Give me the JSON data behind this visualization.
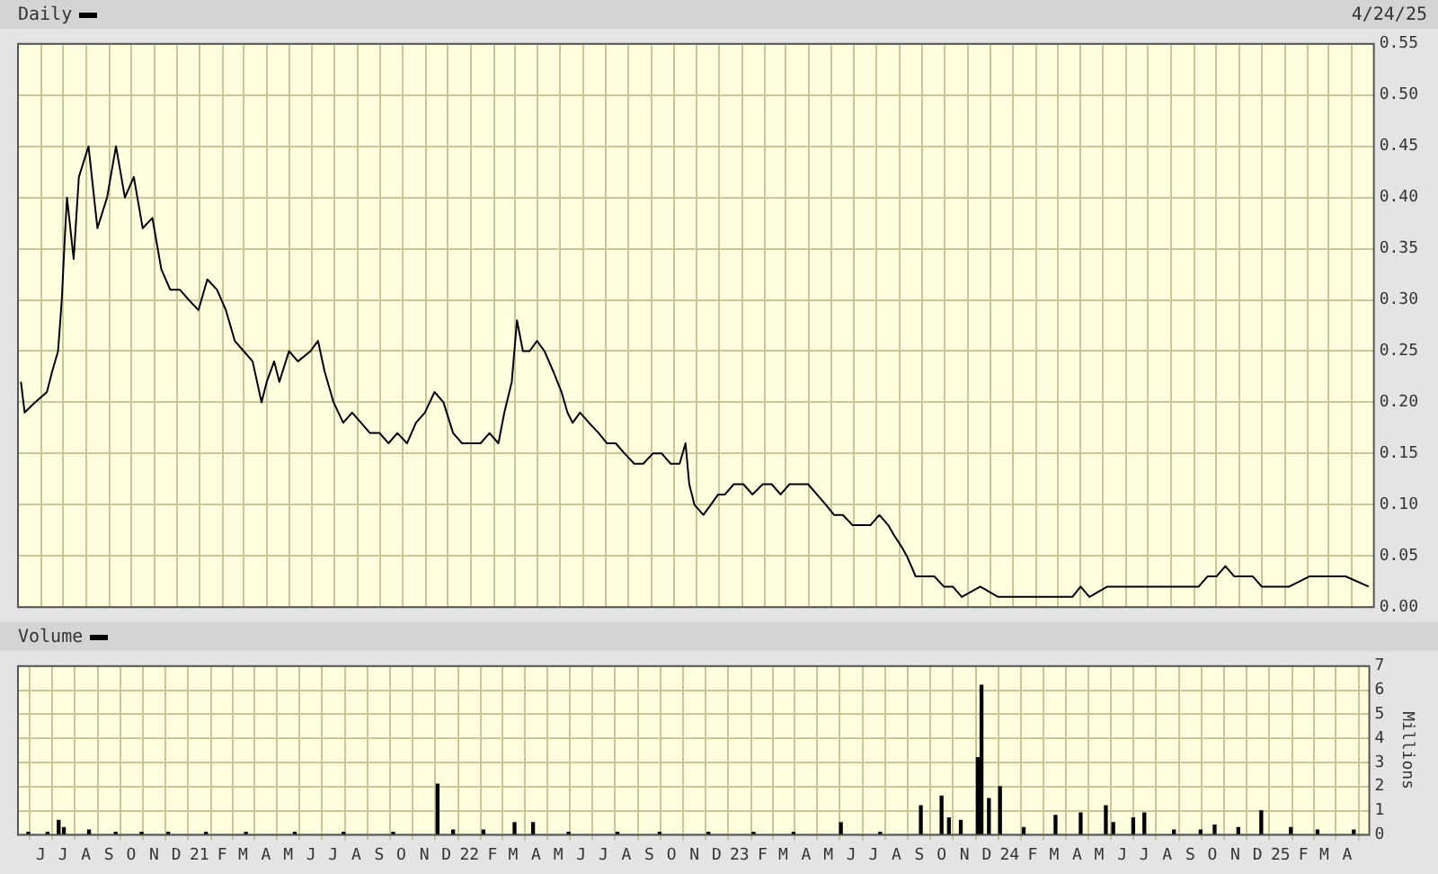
{
  "chart_data": [
    {
      "type": "line",
      "legend": "top left",
      "marker": "none",
      "grid": true,
      "tick_labels": "y",
      "annotations": [
        "4/24/25"
      ],
      "xlim": [
        "2020-05-01",
        "2025-05-01"
      ],
      "xticks": [
        {
          "value": "2020-06",
          "label": null
        },
        {
          "value": "2020-07",
          "label": null
        },
        {
          "value": "2020-08",
          "label": null
        },
        {
          "value": "2020-09",
          "label": null
        },
        {
          "value": "2020-10",
          "label": null
        },
        {
          "value": "2020-11",
          "label": null
        },
        {
          "value": "2020-12",
          "label": null
        },
        {
          "value": "2021-01",
          "label": null
        },
        {
          "value": "2021-02",
          "label": null
        },
        {
          "value": "2021-03",
          "label": null
        },
        {
          "value": "2021-04",
          "label": null
        },
        {
          "value": "2021-05",
          "label": null
        },
        {
          "value": "2021-06",
          "label": null
        },
        {
          "value": "2021-07",
          "label": null
        },
        {
          "value": "2021-08",
          "label": null
        },
        {
          "value": "2021-09",
          "label": null
        },
        {
          "value": "2021-10",
          "label": null
        },
        {
          "value": "2021-11",
          "label": null
        },
        {
          "value": "2021-12",
          "label": null
        },
        {
          "value": "2022-01",
          "label": null
        },
        {
          "value": "2022-02",
          "label": null
        },
        {
          "value": "2022-03",
          "label": null
        },
        {
          "value": "2022-04",
          "label": null
        },
        {
          "value": "2022-05",
          "label": null
        },
        {
          "value": "2022-06",
          "label": null
        },
        {
          "value": "2022-07",
          "label": null
        },
        {
          "value": "2022-08",
          "label": null
        },
        {
          "value": "2022-09",
          "label": null
        },
        {
          "value": "2022-10",
          "label": null
        },
        {
          "value": "2022-11",
          "label": null
        },
        {
          "value": "2022-12",
          "label": null
        },
        {
          "value": "2023-01",
          "label": null
        },
        {
          "value": "2023-02",
          "label": null
        },
        {
          "value": "2023-03",
          "label": null
        },
        {
          "value": "2023-04",
          "label": null
        },
        {
          "value": "2023-05",
          "label": null
        },
        {
          "value": "2023-06",
          "label": null
        },
        {
          "value": "2023-07",
          "label": null
        },
        {
          "value": "2023-08",
          "label": null
        },
        {
          "value": "2023-09",
          "label": null
        },
        {
          "value": "2023-10",
          "label": null
        },
        {
          "value": "2023-11",
          "label": null
        },
        {
          "value": "2023-12",
          "label": null
        },
        {
          "value": "2024-01",
          "label": null
        },
        {
          "value": "2024-02",
          "label": null
        },
        {
          "value": "2024-03",
          "label": null
        },
        {
          "value": "2024-04",
          "label": null
        },
        {
          "value": "2024-05",
          "label": null
        },
        {
          "value": "2024-06",
          "label": null
        },
        {
          "value": "2024-07",
          "label": null
        },
        {
          "value": "2024-08",
          "label": null
        },
        {
          "value": "2024-09",
          "label": null
        },
        {
          "value": "2024-10",
          "label": null
        },
        {
          "value": "2024-11",
          "label": null
        },
        {
          "value": "2024-12",
          "label": null
        },
        {
          "value": "2025-01",
          "label": null
        },
        {
          "value": "2025-02",
          "label": null
        },
        {
          "value": "2025-03",
          "label": null
        },
        {
          "value": "2025-04",
          "label": null
        }
      ],
      "ylim": [
        0,
        0.55
      ],
      "yticks": [
        {
          "value": 0,
          "label": "0.00"
        },
        {
          "value": 0.05,
          "label": "0.05"
        },
        {
          "value": 0.1,
          "label": "0.10"
        },
        {
          "value": 0.15,
          "label": "0.15"
        },
        {
          "value": 0.2,
          "label": "0.20"
        },
        {
          "value": 0.25,
          "label": "0.25"
        },
        {
          "value": 0.3,
          "label": "0.30"
        },
        {
          "value": 0.35,
          "label": "0.35"
        },
        {
          "value": 0.4,
          "label": "0.40"
        },
        {
          "value": 0.45,
          "label": "0.45"
        },
        {
          "value": 0.5,
          "label": "0.50"
        },
        {
          "value": 0.55,
          "label": "0.55"
        }
      ],
      "series": [
        {
          "name": "Daily",
          "color": "#000000",
          "x": [
            "2020-05-05",
            "2020-05-10",
            "2020-05-24",
            "2020-06-09",
            "2020-06-16",
            "2020-06-24",
            "2020-06-29",
            "2020-07-03",
            "2020-07-06",
            "2020-07-15",
            "2020-07-22",
            "2020-08-04",
            "2020-08-16",
            "2020-08-29",
            "2020-09-10",
            "2020-09-22",
            "2020-10-04",
            "2020-10-16",
            "2020-10-29",
            "2020-11-10",
            "2020-11-22",
            "2020-12-05",
            "2020-12-17",
            "2020-12-30",
            "2021-01-11",
            "2021-01-24",
            "2021-02-05",
            "2021-02-17",
            "2021-03-01",
            "2021-03-13",
            "2021-03-25",
            "2021-04-01",
            "2021-04-11",
            "2021-04-18",
            "2021-05-01",
            "2021-05-13",
            "2021-05-30",
            "2021-06-09",
            "2021-06-18",
            "2021-06-30",
            "2021-07-13",
            "2021-07-25",
            "2021-08-06",
            "2021-08-18",
            "2021-08-31",
            "2021-09-12",
            "2021-09-24",
            "2021-10-07",
            "2021-10-19",
            "2021-10-31",
            "2021-11-13",
            "2021-11-25",
            "2021-12-08",
            "2021-12-20",
            "2022-01-02",
            "2022-01-14",
            "2022-01-26",
            "2022-02-07",
            "2022-02-15",
            "2022-02-25",
            "2022-03-04",
            "2022-03-12",
            "2022-03-21",
            "2022-03-31",
            "2022-04-10",
            "2022-04-22",
            "2022-05-03",
            "2022-05-11",
            "2022-05-18",
            "2022-05-28",
            "2022-06-09",
            "2022-06-22",
            "2022-07-03",
            "2022-07-15",
            "2022-07-27",
            "2022-08-09",
            "2022-08-21",
            "2022-09-03",
            "2022-09-15",
            "2022-09-27",
            "2022-10-09",
            "2022-10-17",
            "2022-10-22",
            "2022-10-29",
            "2022-11-10",
            "2022-11-20",
            "2022-11-30",
            "2022-12-09",
            "2022-12-21",
            "2023-01-03",
            "2023-01-15",
            "2023-01-29",
            "2023-02-10",
            "2023-02-22",
            "2023-03-06",
            "2023-03-18",
            "2023-03-31",
            "2023-04-12",
            "2023-04-24",
            "2023-05-05",
            "2023-05-17",
            "2023-05-30",
            "2023-06-11",
            "2023-06-23",
            "2023-07-05",
            "2023-07-17",
            "2023-07-25",
            "2023-08-03",
            "2023-08-11",
            "2023-08-23",
            "2023-09-05",
            "2023-09-17",
            "2023-09-30",
            "2023-10-12",
            "2023-10-24",
            "2023-11-18",
            "2023-12-12",
            "2024-01-06",
            "2024-01-30",
            "2024-02-24",
            "2024-03-21",
            "2024-04-01",
            "2024-04-13",
            "2024-05-07",
            "2024-06-01",
            "2024-06-25",
            "2024-07-19",
            "2024-08-13",
            "2024-09-07",
            "2024-09-19",
            "2024-10-01",
            "2024-10-13",
            "2024-10-25",
            "2024-11-07",
            "2024-11-19",
            "2024-12-01",
            "2024-12-13",
            "2025-01-07",
            "2025-02-03",
            "2025-02-27",
            "2025-03-11",
            "2025-03-24",
            "2025-04-24"
          ],
          "values": [
            0.22,
            0.19,
            0.2,
            0.21,
            0.23,
            0.25,
            0.3,
            0.36,
            0.4,
            0.34,
            0.42,
            0.45,
            0.37,
            0.4,
            0.45,
            0.4,
            0.42,
            0.37,
            0.38,
            0.33,
            0.31,
            0.31,
            0.3,
            0.29,
            0.32,
            0.31,
            0.29,
            0.26,
            0.25,
            0.24,
            0.2,
            0.22,
            0.24,
            0.22,
            0.25,
            0.24,
            0.25,
            0.26,
            0.23,
            0.2,
            0.18,
            0.19,
            0.18,
            0.17,
            0.17,
            0.16,
            0.17,
            0.16,
            0.18,
            0.19,
            0.21,
            0.2,
            0.17,
            0.16,
            0.16,
            0.16,
            0.17,
            0.16,
            0.19,
            0.22,
            0.28,
            0.25,
            0.25,
            0.26,
            0.25,
            0.23,
            0.21,
            0.19,
            0.18,
            0.19,
            0.18,
            0.17,
            0.16,
            0.16,
            0.15,
            0.14,
            0.14,
            0.15,
            0.15,
            0.14,
            0.14,
            0.16,
            0.12,
            0.1,
            0.09,
            0.1,
            0.11,
            0.11,
            0.12,
            0.12,
            0.11,
            0.12,
            0.12,
            0.11,
            0.12,
            0.12,
            0.12,
            0.11,
            0.1,
            0.09,
            0.09,
            0.08,
            0.08,
            0.08,
            0.09,
            0.08,
            0.07,
            0.06,
            0.05,
            0.03,
            0.03,
            0.03,
            0.02,
            0.02,
            0.01,
            0.02,
            0.01,
            0.01,
            0.01,
            0.01,
            0.01,
            0.02,
            0.01,
            0.02,
            0.02,
            0.02,
            0.02,
            0.02,
            0.02,
            0.03,
            0.03,
            0.04,
            0.03,
            0.03,
            0.03,
            0.02,
            0.02,
            0.02,
            0.03,
            0.03,
            0.03,
            0.03,
            0.02
          ]
        }
      ]
    },
    {
      "type": "bar",
      "legend": "top left",
      "grid": true,
      "ylabel": "Millions",
      "xlim": [
        "2020-05-01",
        "2025-05-01"
      ],
      "xticks": [
        {
          "value": "2020-06",
          "label": "J"
        },
        {
          "value": "2020-07",
          "label": "J"
        },
        {
          "value": "2020-08",
          "label": "A"
        },
        {
          "value": "2020-09",
          "label": "S"
        },
        {
          "value": "2020-10",
          "label": "O"
        },
        {
          "value": "2020-11",
          "label": "N"
        },
        {
          "value": "2020-12",
          "label": "D"
        },
        {
          "value": "2021-01",
          "label": "21"
        },
        {
          "value": "2021-02",
          "label": "F"
        },
        {
          "value": "2021-03",
          "label": "M"
        },
        {
          "value": "2021-04",
          "label": "A"
        },
        {
          "value": "2021-05",
          "label": "M"
        },
        {
          "value": "2021-06",
          "label": "J"
        },
        {
          "value": "2021-07",
          "label": "J"
        },
        {
          "value": "2021-08",
          "label": "A"
        },
        {
          "value": "2021-09",
          "label": "S"
        },
        {
          "value": "2021-10",
          "label": "O"
        },
        {
          "value": "2021-11",
          "label": "N"
        },
        {
          "value": "2021-12",
          "label": "D"
        },
        {
          "value": "2022-01",
          "label": "22"
        },
        {
          "value": "2022-02",
          "label": "F"
        },
        {
          "value": "2022-03",
          "label": "M"
        },
        {
          "value": "2022-04",
          "label": "A"
        },
        {
          "value": "2022-05",
          "label": "M"
        },
        {
          "value": "2022-06",
          "label": "J"
        },
        {
          "value": "2022-07",
          "label": "J"
        },
        {
          "value": "2022-08",
          "label": "A"
        },
        {
          "value": "2022-09",
          "label": "S"
        },
        {
          "value": "2022-10",
          "label": "O"
        },
        {
          "value": "2022-11",
          "label": "N"
        },
        {
          "value": "2022-12",
          "label": "D"
        },
        {
          "value": "2023-01",
          "label": "23"
        },
        {
          "value": "2023-02",
          "label": "F"
        },
        {
          "value": "2023-03",
          "label": "M"
        },
        {
          "value": "2023-04",
          "label": "A"
        },
        {
          "value": "2023-05",
          "label": "M"
        },
        {
          "value": "2023-06",
          "label": "J"
        },
        {
          "value": "2023-07",
          "label": "J"
        },
        {
          "value": "2023-08",
          "label": "A"
        },
        {
          "value": "2023-09",
          "label": "S"
        },
        {
          "value": "2023-10",
          "label": "O"
        },
        {
          "value": "2023-11",
          "label": "N"
        },
        {
          "value": "2023-12",
          "label": "D"
        },
        {
          "value": "2024-01",
          "label": "24"
        },
        {
          "value": "2024-02",
          "label": "F"
        },
        {
          "value": "2024-03",
          "label": "M"
        },
        {
          "value": "2024-04",
          "label": "A"
        },
        {
          "value": "2024-05",
          "label": "M"
        },
        {
          "value": "2024-06",
          "label": "J"
        },
        {
          "value": "2024-07",
          "label": "J"
        },
        {
          "value": "2024-08",
          "label": "A"
        },
        {
          "value": "2024-09",
          "label": "S"
        },
        {
          "value": "2024-10",
          "label": "O"
        },
        {
          "value": "2024-11",
          "label": "N"
        },
        {
          "value": "2024-12",
          "label": "D"
        },
        {
          "value": "2025-01",
          "label": "25"
        },
        {
          "value": "2025-02",
          "label": "F"
        },
        {
          "value": "2025-03",
          "label": "M"
        },
        {
          "value": "2025-04",
          "label": "A"
        }
      ],
      "ylim": [
        0,
        7
      ],
      "yticks": [
        0,
        1,
        2,
        3,
        4,
        5,
        6,
        7
      ],
      "series": [
        {
          "name": "Volume",
          "color": "#000000",
          "x": [
            "2020-05-15",
            "2020-06-10",
            "2020-06-25",
            "2020-07-02",
            "2020-08-05",
            "2020-09-10",
            "2020-10-15",
            "2020-11-20",
            "2021-01-10",
            "2021-03-05",
            "2021-05-10",
            "2021-07-15",
            "2021-09-20",
            "2021-11-19",
            "2021-12-10",
            "2022-01-20",
            "2022-03-03",
            "2022-03-28",
            "2022-05-15",
            "2022-07-20",
            "2022-09-15",
            "2022-11-20",
            "2023-01-20",
            "2023-03-15",
            "2023-05-18",
            "2023-07-10",
            "2023-09-03",
            "2023-10-01",
            "2023-10-11",
            "2023-10-27",
            "2023-11-19",
            "2023-11-24",
            "2023-12-04",
            "2023-12-19",
            "2024-01-20",
            "2024-03-03",
            "2024-04-06",
            "2024-05-10",
            "2024-05-20",
            "2024-06-16",
            "2024-07-01",
            "2024-08-10",
            "2024-09-15",
            "2024-10-04",
            "2024-11-05",
            "2024-12-06",
            "2025-01-15",
            "2025-02-20",
            "2025-04-10"
          ],
          "values": [
            0.1,
            0.1,
            0.6,
            0.3,
            0.2,
            0.1,
            0.1,
            0.1,
            0.1,
            0.1,
            0.1,
            0.1,
            0.1,
            2.1,
            0.2,
            0.2,
            0.5,
            0.5,
            0.1,
            0.1,
            0.1,
            0.1,
            0.1,
            0.1,
            0.5,
            0.1,
            1.2,
            1.6,
            0.7,
            0.6,
            3.2,
            6.2,
            1.5,
            2.0,
            0.3,
            0.8,
            0.9,
            1.2,
            0.5,
            0.7,
            0.9,
            0.2,
            0.2,
            0.4,
            0.3,
            1.0,
            0.3,
            0.2,
            0.2
          ]
        }
      ]
    }
  ]
}
